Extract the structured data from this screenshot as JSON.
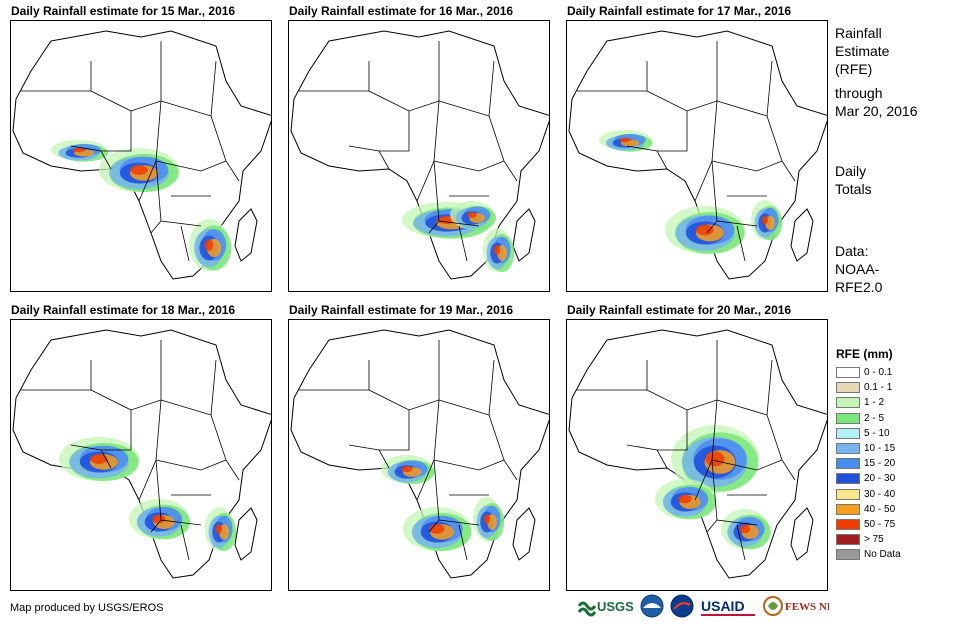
{
  "panels": [
    {
      "title": "Daily Rainfall estimate for 15 Mar., 2016"
    },
    {
      "title": "Daily Rainfall estimate for 16 Mar., 2016"
    },
    {
      "title": "Daily Rainfall estimate for 17 Mar., 2016"
    },
    {
      "title": "Daily Rainfall estimate for 18 Mar., 2016"
    },
    {
      "title": "Daily Rainfall estimate for 19 Mar., 2016"
    },
    {
      "title": "Daily Rainfall estimate for 20 Mar., 2016"
    }
  ],
  "side_info": {
    "title_line1": "Rainfall",
    "title_line2": "Estimate",
    "title_line3": "(RFE)",
    "through_line1": "through",
    "through_line2": "Mar 20, 2016",
    "totals_line1": "Daily",
    "totals_line2": "Totals",
    "data_line1": "Data:",
    "data_line2": "NOAA-",
    "data_line3": "RFE2.0"
  },
  "legend": {
    "title": "RFE (mm)",
    "items": [
      {
        "label": "0 - 0.1",
        "color": "#ffffff"
      },
      {
        "label": "0.1 - 1",
        "color": "#e6d7b9"
      },
      {
        "label": "1 - 2",
        "color": "#c3f5b4"
      },
      {
        "label": "2 - 5",
        "color": "#78e678"
      },
      {
        "label": "5 - 10",
        "color": "#b4f0f5"
      },
      {
        "label": "10 - 15",
        "color": "#78b4f0"
      },
      {
        "label": "15 - 20",
        "color": "#4b8cf0"
      },
      {
        "label": "20 - 30",
        "color": "#1e50dc"
      },
      {
        "label": "30 - 40",
        "color": "#fae68c"
      },
      {
        "label": "40 - 50",
        "color": "#faa01e"
      },
      {
        "label": "50 - 75",
        "color": "#f03c00"
      },
      {
        "label": "> 75",
        "color": "#a01e1e"
      },
      {
        "label": "No Data",
        "color": "#999999"
      }
    ]
  },
  "credit": "Map produced by USGS/EROS",
  "logos": [
    {
      "name": "usgs-logo",
      "text": "USGS"
    },
    {
      "name": "noaa-logo",
      "text": "NOAA"
    },
    {
      "name": "nasa-logo",
      "text": "NASA"
    },
    {
      "name": "usaid-logo",
      "text": "USAID"
    },
    {
      "name": "fewsnet-logo",
      "text": "FEWS NET"
    }
  ]
}
